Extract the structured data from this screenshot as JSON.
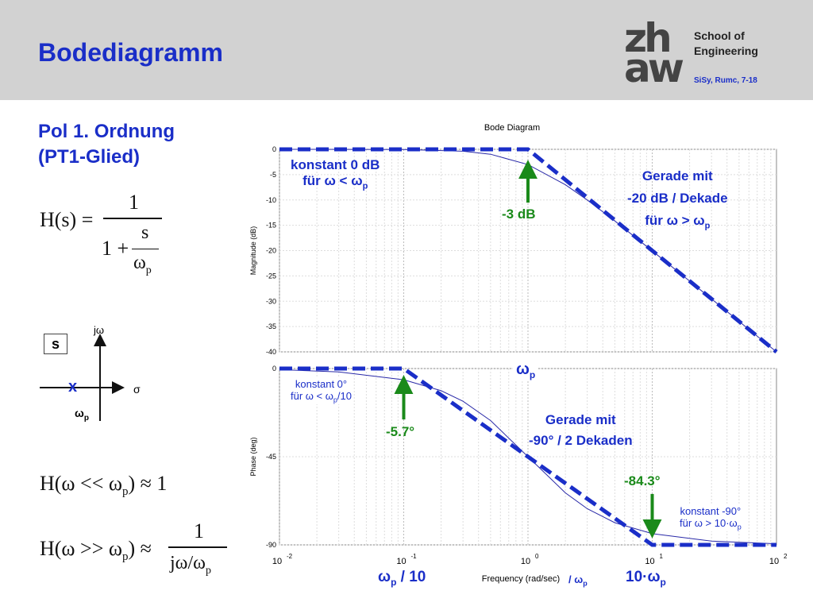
{
  "slide": {
    "title": "Bodediagramm",
    "logo": {
      "line1": "zh",
      "line2": "aw"
    },
    "school": [
      "School of",
      "Engineering"
    ],
    "course": "SiSy, Rumc, 7-18",
    "subtitle": [
      "Pol 1. Ordnung",
      "(PT1-Glied)"
    ]
  },
  "formulas": {
    "transfer": {
      "lhs": "H(s) =",
      "num": "1",
      "den_lead": "1 +",
      "frac_num": "s",
      "frac_den": "ω",
      "frac_den_sub": "p"
    },
    "low": {
      "text": "H(ω << ω",
      "sub": "p",
      "rest": ") ≈ 1"
    },
    "high": {
      "lhs": "H(ω >> ω",
      "sub": "p",
      "rest": ") ≈",
      "num": "1",
      "den": "jω/ω",
      "den_sub": "p"
    }
  },
  "s_plane": {
    "label": "s",
    "imag_axis": "jω",
    "real_axis": "σ",
    "pole_marker": "x",
    "pole_label": "ω",
    "pole_label_sub": "p"
  },
  "annotations": {
    "const0db": {
      "line1": "konstant 0 dB",
      "line2": "für ω < ω",
      "line2_sub": "p"
    },
    "minus3db": "-3 dB",
    "slope20": {
      "line1": "Gerade mit",
      "line2": "-20 dB / Dekade",
      "line3": "für ω > ω",
      "line3_sub": "p"
    },
    "omega_p": {
      "text": "ω",
      "sub": "p"
    },
    "const0deg": {
      "line1": "konstant 0°",
      "line2": "für ω < ω",
      "line2_sub": "p",
      "line2_rest": "/10"
    },
    "minus57": "-5.7°",
    "slope90": {
      "line1": "Gerade mit",
      "line2": "-90° / 2 Dekaden"
    },
    "minus843": "-84.3°",
    "const90": {
      "line1": "konstant -90°",
      "line2": "für ω > 10·ω",
      "line2_sub": "p"
    },
    "omega_p_10": {
      "text": "ω",
      "sub": "p",
      "rest": " / 10"
    },
    "ten_omega_p": {
      "text": "10·ω",
      "sub": "p"
    },
    "freq_suffix": {
      "text": "/ ω",
      "sub": "p"
    }
  },
  "chart_data": [
    {
      "type": "line",
      "title": "Bode Diagram",
      "ylabel": "Magnitude (dB)",
      "xscale": "log",
      "xlim": [
        0.01,
        100
      ],
      "ylim": [
        -40,
        0
      ],
      "yticks": [
        "0",
        "-5",
        "-10",
        "-15",
        "-20",
        "-25",
        "-30",
        "-35",
        "-40"
      ],
      "grid": true,
      "series": [
        {
          "color": "#2a2aa8",
          "style": "solid-thin",
          "x": [
            0.01,
            0.1,
            0.3,
            0.5,
            1,
            2,
            3,
            5,
            10,
            20,
            50,
            100
          ],
          "y": [
            0,
            -0.04,
            -0.37,
            -0.97,
            -3.01,
            -6.99,
            -10,
            -14.15,
            -20.04,
            -26.03,
            -33.98,
            -40
          ]
        },
        {
          "color": "#1a2ec8",
          "style": "dashed-thick",
          "x": [
            0.01,
            1,
            100
          ],
          "y": [
            0,
            0,
            -40
          ]
        }
      ]
    },
    {
      "type": "line",
      "ylabel": "Phase (deg)",
      "xlabel": "Frequency  (rad/sec)",
      "xscale": "log",
      "xlim": [
        0.01,
        100
      ],
      "ylim": [
        -90,
        0
      ],
      "xticks": [
        "10",
        "10",
        "10",
        "10",
        "10"
      ],
      "xtick_exponents": [
        "-2",
        "-1",
        "0",
        "1",
        "2"
      ],
      "yticks": [
        "0",
        "-45",
        "-90"
      ],
      "grid": true,
      "series": [
        {
          "color": "#2a2aa8",
          "style": "solid-thin",
          "x": [
            0.01,
            0.03,
            0.1,
            0.2,
            0.3,
            0.5,
            1,
            2,
            3,
            5,
            10,
            30,
            100
          ],
          "y": [
            -0.57,
            -1.72,
            -5.71,
            -11.31,
            -16.7,
            -26.57,
            -45,
            -63.43,
            -71.57,
            -78.69,
            -84.29,
            -88.09,
            -89.43
          ]
        },
        {
          "color": "#1a2ec8",
          "style": "dashed-thick",
          "x": [
            0.01,
            0.1,
            10,
            100
          ],
          "y": [
            0,
            0,
            -90,
            -90
          ]
        }
      ]
    }
  ]
}
